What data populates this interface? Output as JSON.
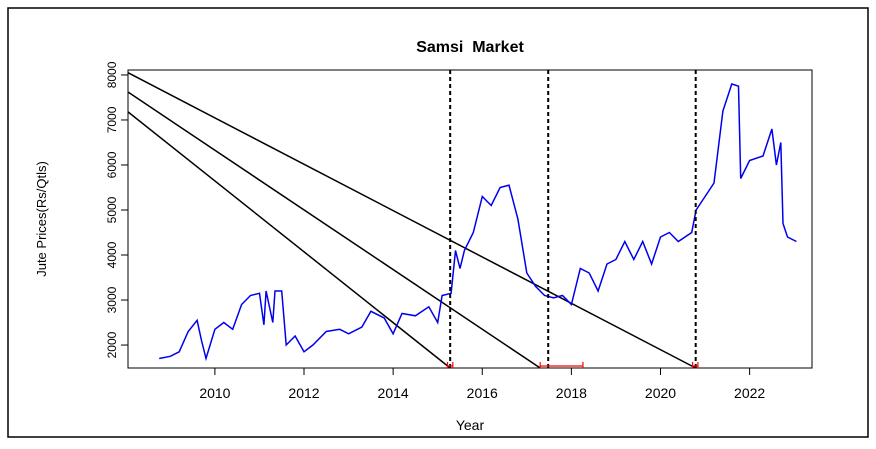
{
  "chart_data": {
    "type": "line",
    "title": "Samsi  Market",
    "x_label": "Year",
    "y_label": "Jute Prices(Rs/Qtls)",
    "xlim": [
      2008.05,
      2023.4
    ],
    "xticks": [
      2010,
      2012,
      2014,
      2016,
      2018,
      2020,
      2022
    ],
    "ylim": [
      1490,
      8110
    ],
    "yticks": [
      2000,
      3000,
      4000,
      5000,
      6000,
      7000,
      8000
    ],
    "series": [
      {
        "color": "#0000ee",
        "x": [
          2008.75,
          2009.0,
          2009.2,
          2009.4,
          2009.6,
          2009.7,
          2009.8,
          2010.0,
          2010.2,
          2010.4,
          2010.6,
          2010.8,
          2011.0,
          2011.1,
          2011.15,
          2011.3,
          2011.35,
          2011.5,
          2011.6,
          2011.8,
          2012.0,
          2012.2,
          2012.5,
          2012.8,
          2013.0,
          2013.3,
          2013.5,
          2013.8,
          2014.0,
          2014.2,
          2014.5,
          2014.8,
          2015.0,
          2015.1,
          2015.3,
          2015.4,
          2015.5,
          2015.6,
          2015.8,
          2016.0,
          2016.2,
          2016.4,
          2016.6,
          2016.8,
          2017.0,
          2017.2,
          2017.4,
          2017.6,
          2017.8,
          2018.0,
          2018.2,
          2018.4,
          2018.6,
          2018.8,
          2019.0,
          2019.2,
          2019.4,
          2019.6,
          2019.8,
          2020.0,
          2020.2,
          2020.4,
          2020.7,
          2020.8,
          2021.0,
          2021.2,
          2021.4,
          2021.6,
          2021.75,
          2021.8,
          2022.0,
          2022.3,
          2022.5,
          2022.6,
          2022.7,
          2022.75,
          2022.85,
          2023.05
        ],
        "values": [
          1700,
          1750,
          1850,
          2300,
          2550,
          2100,
          1700,
          2350,
          2500,
          2350,
          2900,
          3100,
          3150,
          2450,
          3200,
          2500,
          3200,
          3200,
          2000,
          2200,
          1850,
          2000,
          2300,
          2350,
          2250,
          2400,
          2750,
          2600,
          2250,
          2700,
          2650,
          2850,
          2500,
          3100,
          3150,
          4100,
          3700,
          4100,
          4500,
          5300,
          5100,
          5500,
          5550,
          4800,
          3600,
          3300,
          3100,
          3050,
          3100,
          2900,
          3700,
          3600,
          3200,
          3800,
          3900,
          4300,
          3900,
          4300,
          3800,
          4400,
          4500,
          4300,
          4500,
          5000,
          5300,
          5600,
          7200,
          7800,
          7750,
          5700,
          6100,
          6200,
          6800,
          6000,
          6500,
          4700,
          4400,
          4300
        ]
      }
    ],
    "breaks": [
      2015.28,
      2017.48,
      2020.79
    ],
    "confidence_intervals": [
      [
        2015.22,
        2015.34
      ],
      [
        2017.3,
        2018.26
      ],
      [
        2020.72,
        2020.84
      ]
    ],
    "lines": [
      {
        "x": [
          2008.05,
          2020.79
        ],
        "y": [
          8050,
          1490
        ]
      },
      {
        "x": [
          2008.05,
          2017.3
        ],
        "y": [
          7620,
          1490
        ]
      },
      {
        "x": [
          2008.05,
          2015.28
        ],
        "y": [
          7180,
          1490
        ]
      }
    ]
  }
}
